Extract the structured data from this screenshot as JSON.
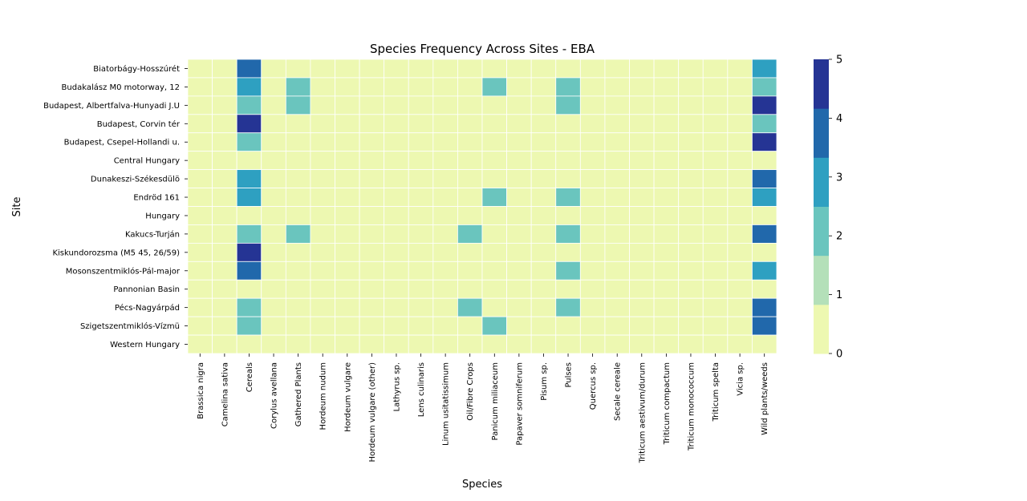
{
  "chart_data": {
    "type": "heatmap",
    "title": "Species Frequency Across Sites - EBA",
    "xlabel": "Species",
    "ylabel": "Site",
    "x_categories": [
      "Brassica nigra",
      "Camelina sativa",
      "Cereals",
      "Corylus avellana",
      "Gathered Plants",
      "Hordeum nudum",
      "Hordeum vulgare",
      "Hordeum vulgare (other)",
      "Lathyrus sp.",
      "Lens culinaris",
      "Linum usitatissimum",
      "Oil/Fibre Crops",
      "Panicum miliaceum",
      "Papaver somniferum",
      "Pisum sp.",
      "Pulses",
      "Quercus sp.",
      "Secale cereale",
      "Triticum aestivum/durum",
      "Triticum compactum",
      "Triticum monococcum",
      "Triticum spelta",
      "Vicia sp.",
      "Wild plants/weeds"
    ],
    "y_categories": [
      "Biatorbágy-Hosszúrét",
      "Budakalász M0 motorway, 12",
      "Budapest, Albertfalva-Hunyadi J.U",
      "Budapest, Corvin tér",
      "Budapest, Csepel-Hollandi u.",
      "Central Hungary",
      "Dunakeszi-Székesdülö",
      "Endröd 161",
      "Hungary",
      "Kakucs-Turján",
      "Kiskundorozsma (M5 45, 26/59)",
      "Mosonszentmiklós-Pál-major",
      "Pannonian Basin",
      "Pécs-Nagyárpád",
      "Szigetszentmiklós-Vízmü",
      "Western Hungary"
    ],
    "values": [
      [
        0,
        0,
        4,
        0,
        0,
        0,
        0,
        0,
        0,
        0,
        0,
        0,
        0,
        0,
        0,
        0,
        0,
        0,
        0,
        0,
        0,
        0,
        0,
        3
      ],
      [
        0,
        0,
        3,
        0,
        2,
        0,
        0,
        0,
        0,
        0,
        0,
        0,
        2,
        0,
        0,
        2,
        0,
        0,
        0,
        0,
        0,
        0,
        0,
        2
      ],
      [
        0,
        0,
        2,
        0,
        2,
        0,
        0,
        0,
        0,
        0,
        0,
        0,
        0,
        0,
        0,
        2,
        0,
        0,
        0,
        0,
        0,
        0,
        0,
        5
      ],
      [
        0,
        0,
        5,
        0,
        0,
        0,
        0,
        0,
        0,
        0,
        0,
        0,
        0,
        0,
        0,
        0,
        0,
        0,
        0,
        0,
        0,
        0,
        0,
        2
      ],
      [
        0,
        0,
        2,
        0,
        0,
        0,
        0,
        0,
        0,
        0,
        0,
        0,
        0,
        0,
        0,
        0,
        0,
        0,
        0,
        0,
        0,
        0,
        0,
        5
      ],
      [
        0,
        0,
        0,
        0,
        0,
        0,
        0,
        0,
        0,
        0,
        0,
        0,
        0,
        0,
        0,
        0,
        0,
        0,
        0,
        0,
        0,
        0,
        0,
        0
      ],
      [
        0,
        0,
        3,
        0,
        0,
        0,
        0,
        0,
        0,
        0,
        0,
        0,
        0,
        0,
        0,
        0,
        0,
        0,
        0,
        0,
        0,
        0,
        0,
        4
      ],
      [
        0,
        0,
        3,
        0,
        0,
        0,
        0,
        0,
        0,
        0,
        0,
        0,
        2,
        0,
        0,
        2,
        0,
        0,
        0,
        0,
        0,
        0,
        0,
        3
      ],
      [
        0,
        0,
        0,
        0,
        0,
        0,
        0,
        0,
        0,
        0,
        0,
        0,
        0,
        0,
        0,
        0,
        0,
        0,
        0,
        0,
        0,
        0,
        0,
        0
      ],
      [
        0,
        0,
        2,
        0,
        2,
        0,
        0,
        0,
        0,
        0,
        0,
        2,
        0,
        0,
        0,
        2,
        0,
        0,
        0,
        0,
        0,
        0,
        0,
        4
      ],
      [
        0,
        0,
        5,
        0,
        0,
        0,
        0,
        0,
        0,
        0,
        0,
        0,
        0,
        0,
        0,
        0,
        0,
        0,
        0,
        0,
        0,
        0,
        0,
        0
      ],
      [
        0,
        0,
        4,
        0,
        0,
        0,
        0,
        0,
        0,
        0,
        0,
        0,
        0,
        0,
        0,
        2,
        0,
        0,
        0,
        0,
        0,
        0,
        0,
        3
      ],
      [
        0,
        0,
        0,
        0,
        0,
        0,
        0,
        0,
        0,
        0,
        0,
        0,
        0,
        0,
        0,
        0,
        0,
        0,
        0,
        0,
        0,
        0,
        0,
        0
      ],
      [
        0,
        0,
        2,
        0,
        0,
        0,
        0,
        0,
        0,
        0,
        0,
        2,
        0,
        0,
        0,
        2,
        0,
        0,
        0,
        0,
        0,
        0,
        0,
        4
      ],
      [
        0,
        0,
        2,
        0,
        0,
        0,
        0,
        0,
        0,
        0,
        0,
        0,
        2,
        0,
        0,
        0,
        0,
        0,
        0,
        0,
        0,
        0,
        0,
        4
      ],
      [
        0,
        0,
        0,
        0,
        0,
        0,
        0,
        0,
        0,
        0,
        0,
        0,
        0,
        0,
        0,
        0,
        0,
        0,
        0,
        0,
        0,
        0,
        0,
        0
      ]
    ],
    "vmin": 0,
    "vmax": 5,
    "colorbar": {
      "ticks": [
        0,
        1,
        2,
        3,
        4,
        5
      ],
      "tick_labels": [
        "0",
        "1",
        "2",
        "3",
        "4",
        "5"
      ],
      "colors": [
        "#edf8b1",
        "#b4e0b9",
        "#6ac5be",
        "#2ea0c1",
        "#2168ab",
        "#253494"
      ]
    },
    "legend_placement": "right",
    "grid": false
  }
}
